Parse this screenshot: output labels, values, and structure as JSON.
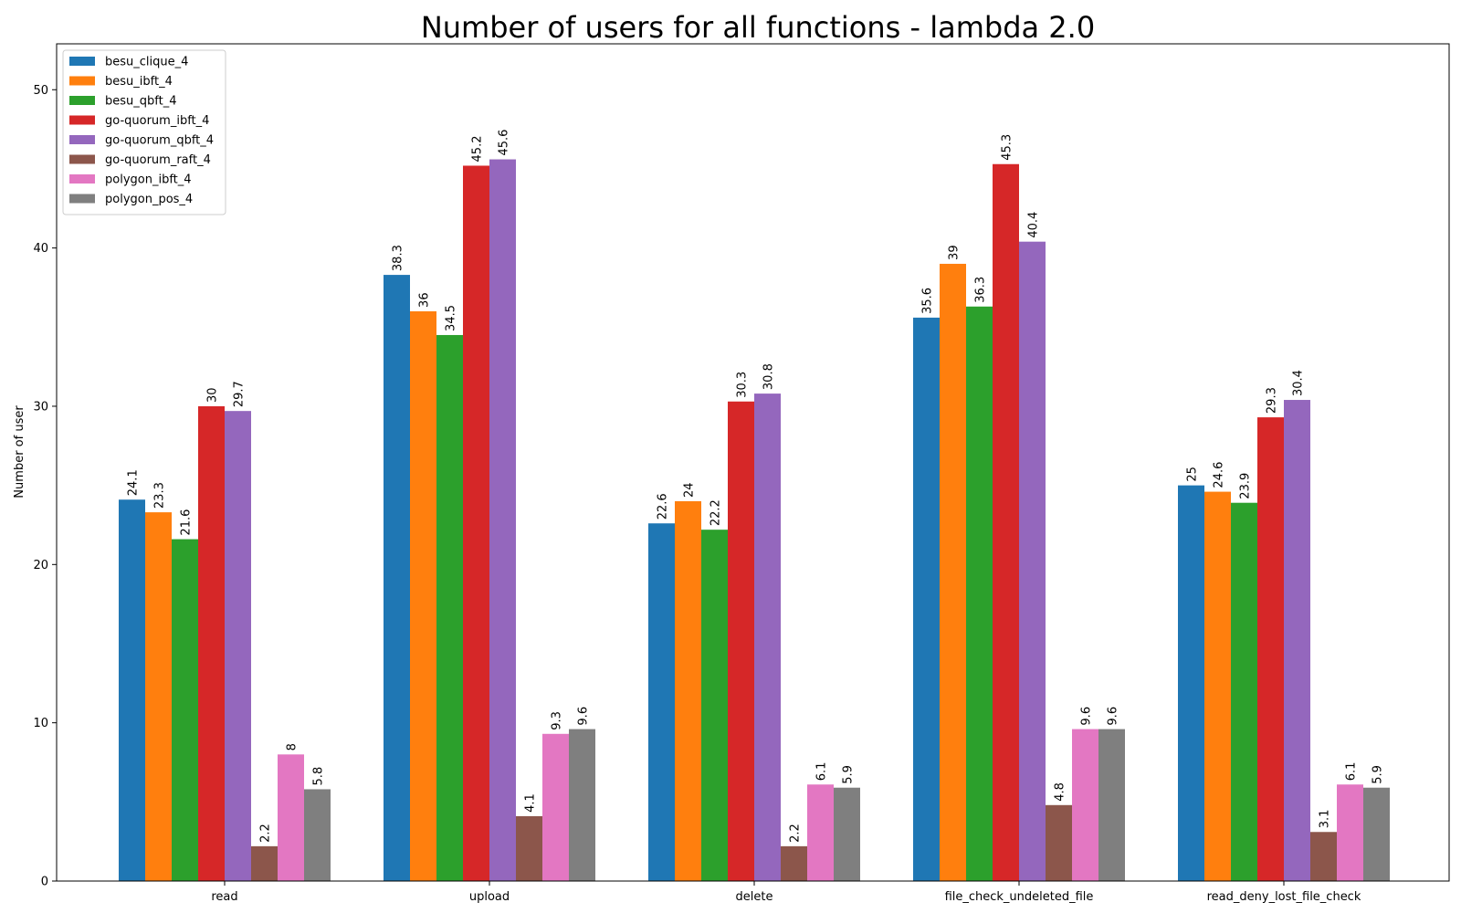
{
  "chart_data": {
    "type": "bar",
    "title": "Number of users for all functions - lambda 2.0",
    "xlabel": "",
    "ylabel": "Number of user",
    "ylim": [
      0,
      52.9
    ],
    "yticks": [
      0,
      10,
      20,
      30,
      40,
      50
    ],
    "grid": false,
    "legend_position": "top-left",
    "categories": [
      "read",
      "upload",
      "delete",
      "file_check_undeleted_file",
      "read_deny_lost_file_check"
    ],
    "series": [
      {
        "name": "besu_clique_4",
        "color": "#1f77b4",
        "values": [
          24.1,
          38.3,
          22.6,
          35.6,
          25
        ]
      },
      {
        "name": "besu_ibft_4",
        "color": "#ff7f0e",
        "values": [
          23.3,
          36,
          24,
          39,
          24.6
        ]
      },
      {
        "name": "besu_qbft_4",
        "color": "#2ca02c",
        "values": [
          21.6,
          34.5,
          22.2,
          36.3,
          23.9
        ]
      },
      {
        "name": "go-quorum_ibft_4",
        "color": "#d62728",
        "values": [
          30,
          45.2,
          30.3,
          45.3,
          29.3
        ]
      },
      {
        "name": "go-quorum_qbft_4",
        "color": "#9467bd",
        "values": [
          29.7,
          45.6,
          30.8,
          40.4,
          30.4
        ]
      },
      {
        "name": "go-quorum_raft_4",
        "color": "#8c564b",
        "values": [
          2.2,
          4.1,
          2.2,
          4.8,
          3.1
        ]
      },
      {
        "name": "polygon_ibft_4",
        "color": "#e377c2",
        "values": [
          8,
          9.3,
          6.1,
          9.6,
          6.1
        ]
      },
      {
        "name": "polygon_pos_4",
        "color": "#7f7f7f",
        "values": [
          5.8,
          9.6,
          5.9,
          9.6,
          5.9
        ]
      }
    ]
  }
}
